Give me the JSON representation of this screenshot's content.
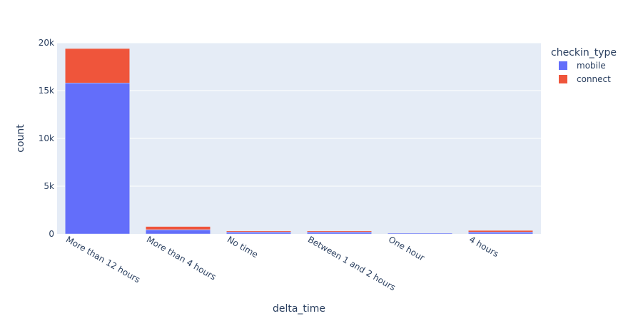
{
  "chart_data": {
    "type": "bar",
    "barmode": "stack",
    "categories": [
      "More than 12 hours",
      "More than 4 hours",
      "No time",
      "Between 1 and 2 hours",
      "One hour",
      "4 hours"
    ],
    "series": [
      {
        "name": "mobile",
        "values": [
          15800,
          450,
          200,
          200,
          90,
          200
        ],
        "color": "#636efa"
      },
      {
        "name": "connect",
        "values": [
          3600,
          330,
          110,
          110,
          30,
          170
        ],
        "color": "#ef553b"
      }
    ],
    "xlabel": "delta_time",
    "ylabel": "count",
    "ylim": [
      0,
      20000
    ],
    "yticks": [
      0,
      5000,
      10000,
      15000,
      20000
    ],
    "ytick_labels": [
      "0",
      "5k",
      "10k",
      "15k",
      "20k"
    ],
    "legend_title": "checkin_type",
    "legend_position": "top-right",
    "grid": true,
    "plot_bgcolor": "#e5ecf6",
    "grid_color": "#ffffff",
    "tick_label_angle": 30
  }
}
